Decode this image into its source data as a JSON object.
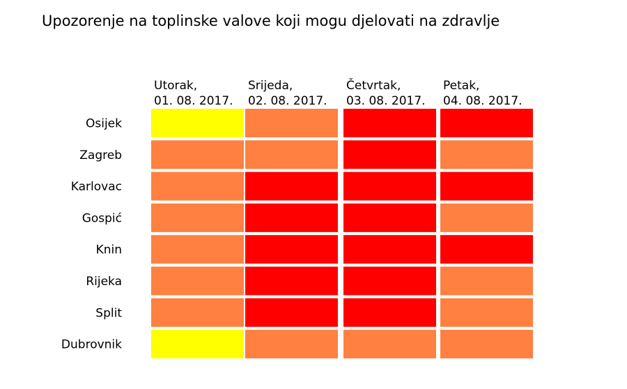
{
  "chart_data": {
    "type": "heatmap",
    "title": "Upozorenje na toplinske valove koji mogu djelovati na zdravlje",
    "columns": [
      {
        "day": "Utorak,",
        "date": "01. 08. 2017."
      },
      {
        "day": "Srijeda,",
        "date": "02. 08. 2017."
      },
      {
        "day": "Četvrtak,",
        "date": "03. 08. 2017."
      },
      {
        "day": "Petak,",
        "date": "04. 08. 2017."
      }
    ],
    "rows": [
      "Osijek",
      "Zagreb",
      "Karlovac",
      "Gospić",
      "Knin",
      "Rijeka",
      "Split",
      "Dubrovnik"
    ],
    "levels": [
      [
        "yellow",
        "orange",
        "red",
        "red"
      ],
      [
        "orange",
        "orange",
        "red",
        "orange"
      ],
      [
        "orange",
        "red",
        "red",
        "red"
      ],
      [
        "orange",
        "red",
        "red",
        "orange"
      ],
      [
        "orange",
        "red",
        "red",
        "red"
      ],
      [
        "orange",
        "red",
        "red",
        "orange"
      ],
      [
        "orange",
        "red",
        "red",
        "orange"
      ],
      [
        "yellow",
        "orange",
        "orange",
        "orange"
      ]
    ],
    "colors": {
      "yellow": "#ffff00",
      "orange": "#ff8040",
      "red": "#ff0000"
    },
    "grid": false,
    "legend": "none"
  }
}
